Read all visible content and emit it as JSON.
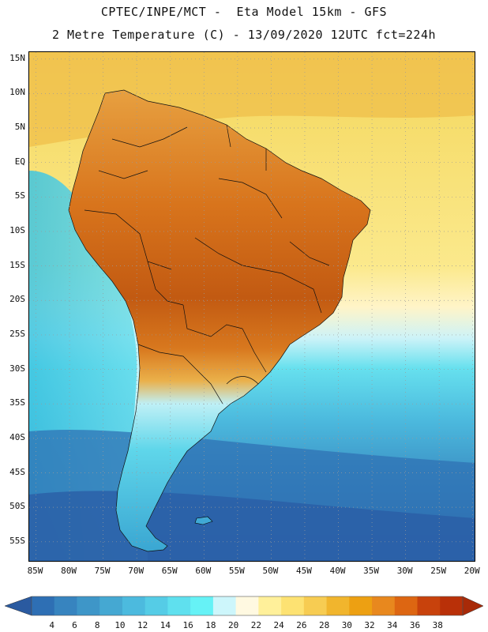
{
  "title": {
    "line1": "CPTEC/INPE/MCT -  Eta Model 15km - GFS",
    "line2": "2 Metre Temperature (C) - 13/09/2020 12UTC fct=224h"
  },
  "map": {
    "latitude_labels": [
      "15N",
      "10N",
      "5N",
      "EQ",
      "5S",
      "10S",
      "15S",
      "20S",
      "25S",
      "30S",
      "35S",
      "40S",
      "45S",
      "50S",
      "55S"
    ],
    "latitude_values": [
      15,
      10,
      5,
      0,
      -5,
      -10,
      -15,
      -20,
      -25,
      -30,
      -35,
      -40,
      -45,
      -50,
      -55
    ],
    "longitude_labels": [
      "85W",
      "80W",
      "75W",
      "70W",
      "65W",
      "60W",
      "55W",
      "50W",
      "45W",
      "40W",
      "35W",
      "30W",
      "25W",
      "20W"
    ],
    "longitude_values": [
      -85,
      -80,
      -75,
      -70,
      -65,
      -60,
      -55,
      -50,
      -45,
      -40,
      -35,
      -30,
      -25,
      -20
    ],
    "lat_range": [
      -58,
      16
    ],
    "lon_range": [
      -86,
      -19.5
    ],
    "colors": {
      "ocean_warm": "#f6dc6a",
      "ocean_mid": "#fbf0a4",
      "land_hot": "#d8741c",
      "land_very_hot": "#b8520c",
      "land_warm": "#e79a32",
      "andes": "#8ee4ee",
      "south_cold": "#3fb0d6",
      "ocean_cold": "#2a6fb0"
    }
  },
  "colorbar": {
    "units": "C",
    "labels": [
      "4",
      "6",
      "8",
      "10",
      "12",
      "14",
      "16",
      "18",
      "20",
      "22",
      "24",
      "26",
      "28",
      "30",
      "32",
      "34",
      "36",
      "38"
    ],
    "colors": [
      "#2e6fb4",
      "#3784bf",
      "#3e96c8",
      "#45a8d2",
      "#4cbade",
      "#55cce6",
      "#5fe0ee",
      "#66f2f6",
      "#cdf6fb",
      "#fff9e1",
      "#fff09a",
      "#fde272",
      "#f7cc52",
      "#f1b52d",
      "#eda012",
      "#e8881e",
      "#dd6612",
      "#c8420c",
      "#b93008"
    ]
  }
}
